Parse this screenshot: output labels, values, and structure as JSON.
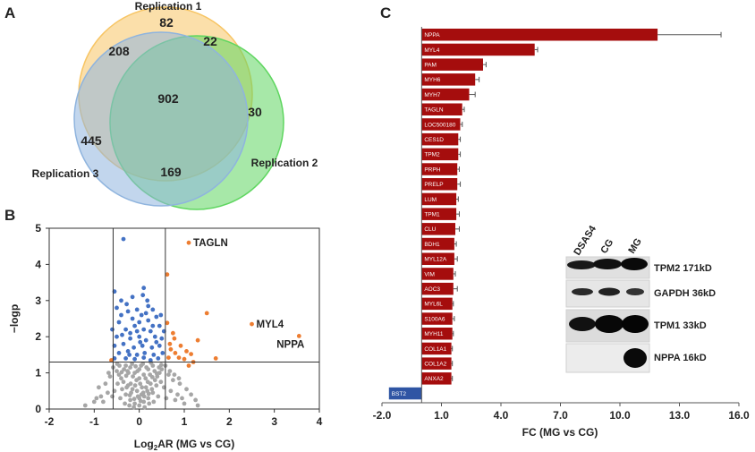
{
  "panels": {
    "a": "A",
    "b": "B",
    "c": "C"
  },
  "chart_data": [
    {
      "type": "venn",
      "sets": [
        "Replication 1",
        "Replication 2",
        "Replication 3"
      ],
      "regions": {
        "r1_only": "82",
        "r1_r2": "22",
        "r2_only": "30",
        "r1_r3": "208",
        "all": "902",
        "r3_only": "445",
        "r2_r3": "169"
      },
      "colors": {
        "r1": "#f7c564",
        "r2": "#5fd660",
        "r3": "#8fb4de"
      }
    },
    {
      "type": "scatter",
      "xlabel": "Log2AR (MG vs CG)",
      "ylabel": "−logp",
      "xlim": [
        -2,
        4
      ],
      "ylim": [
        0,
        5
      ],
      "xticks": [
        "-2",
        "-1",
        "0",
        "1",
        "2",
        "3",
        "4"
      ],
      "yticks": [
        "0",
        "1",
        "2",
        "3",
        "4",
        "5"
      ],
      "thresholds": {
        "x": [
          -0.58,
          0.58
        ],
        "y": 1.3
      },
      "colors": {
        "grey": "#a6a6a6",
        "blue": "#4472c4",
        "orange": "#ed7d31"
      },
      "labeled_points": [
        {
          "label": "TAGLN",
          "x": 1.1,
          "y": 4.6
        },
        {
          "label": "MYL4",
          "x": 2.5,
          "y": 2.35
        },
        {
          "label": "NPPA",
          "x": 3.55,
          "y": 2.02
        }
      ],
      "orange_points": [
        [
          1.1,
          4.6
        ],
        [
          2.5,
          2.35
        ],
        [
          3.55,
          2.02
        ],
        [
          1.5,
          2.65
        ],
        [
          0.62,
          2.38
        ],
        [
          0.75,
          2.1
        ],
        [
          0.92,
          1.75
        ],
        [
          1.05,
          1.6
        ],
        [
          0.8,
          1.55
        ],
        [
          0.65,
          1.42
        ],
        [
          1.0,
          1.38
        ],
        [
          1.2,
          1.3
        ],
        [
          0.7,
          1.65
        ],
        [
          1.3,
          1.9
        ],
        [
          1.7,
          1.4
        ],
        [
          1.1,
          1.2
        ],
        [
          -0.62,
          1.35
        ],
        [
          0.78,
          1.95
        ],
        [
          0.62,
          3.72
        ],
        [
          0.88,
          1.42
        ],
        [
          1.15,
          1.52
        ],
        [
          0.68,
          1.8
        ]
      ],
      "blue_points": [
        [
          -0.35,
          4.7
        ],
        [
          -0.55,
          3.25
        ],
        [
          -0.4,
          3.0
        ],
        [
          -0.05,
          2.75
        ],
        [
          0.3,
          2.75
        ],
        [
          0.18,
          3.0
        ],
        [
          0.08,
          3.15
        ],
        [
          -0.25,
          2.7
        ],
        [
          -0.15,
          2.5
        ],
        [
          0.05,
          2.6
        ],
        [
          0.2,
          2.45
        ],
        [
          0.38,
          2.55
        ],
        [
          -0.45,
          2.4
        ],
        [
          -0.6,
          2.2
        ],
        [
          -0.3,
          2.2
        ],
        [
          -0.1,
          2.3
        ],
        [
          0.1,
          2.2
        ],
        [
          0.25,
          2.15
        ],
        [
          0.45,
          2.3
        ],
        [
          -0.5,
          2.0
        ],
        [
          -0.2,
          1.95
        ],
        [
          0.0,
          2.0
        ],
        [
          0.15,
          1.9
        ],
        [
          0.35,
          2.0
        ],
        [
          0.5,
          1.95
        ],
        [
          -0.55,
          1.75
        ],
        [
          -0.35,
          1.8
        ],
        [
          -0.12,
          1.7
        ],
        [
          0.07,
          1.75
        ],
        [
          0.28,
          1.7
        ],
        [
          0.45,
          1.75
        ],
        [
          -0.45,
          1.55
        ],
        [
          -0.25,
          1.6
        ],
        [
          -0.05,
          1.5
        ],
        [
          0.12,
          1.55
        ],
        [
          0.32,
          1.5
        ],
        [
          0.52,
          1.55
        ],
        [
          -0.55,
          1.4
        ],
        [
          -0.3,
          1.4
        ],
        [
          -0.1,
          1.38
        ],
        [
          0.1,
          1.42
        ],
        [
          0.25,
          1.35
        ],
        [
          0.42,
          1.4
        ],
        [
          -0.2,
          2.1
        ],
        [
          0.3,
          2.3
        ],
        [
          -0.4,
          2.6
        ],
        [
          0.0,
          2.4
        ],
        [
          0.2,
          2.85
        ],
        [
          -0.28,
          2.9
        ],
        [
          0.48,
          2.6
        ],
        [
          -0.15,
          3.1
        ],
        [
          0.1,
          3.35
        ],
        [
          -0.5,
          2.8
        ],
        [
          0.55,
          2.15
        ],
        [
          -0.05,
          2.15
        ],
        [
          0.38,
          1.85
        ],
        [
          -0.38,
          2.05
        ],
        [
          0.15,
          2.65
        ],
        [
          -0.22,
          1.5
        ],
        [
          0.02,
          1.85
        ]
      ],
      "grey_points": [
        [
          0.0,
          0.1
        ],
        [
          0.1,
          0.2
        ],
        [
          -0.1,
          0.15
        ],
        [
          0.2,
          0.3
        ],
        [
          -0.2,
          0.25
        ],
        [
          0.05,
          0.4
        ],
        [
          -0.05,
          0.5
        ],
        [
          0.15,
          0.6
        ],
        [
          -0.15,
          0.55
        ],
        [
          0.25,
          0.7
        ],
        [
          -0.25,
          0.65
        ],
        [
          0.3,
          0.45
        ],
        [
          -0.3,
          0.4
        ],
        [
          0.35,
          0.8
        ],
        [
          -0.35,
          0.75
        ],
        [
          0.4,
          0.9
        ],
        [
          -0.4,
          0.85
        ],
        [
          0.45,
          1.0
        ],
        [
          -0.45,
          0.95
        ],
        [
          0.5,
          1.1
        ],
        [
          -0.5,
          1.05
        ],
        [
          0.0,
          0.85
        ],
        [
          0.1,
          0.95
        ],
        [
          -0.1,
          1.0
        ],
        [
          0.2,
          1.1
        ],
        [
          -0.2,
          1.15
        ],
        [
          0.3,
          1.2
        ],
        [
          -0.3,
          1.2
        ],
        [
          0.08,
          1.25
        ],
        [
          -0.08,
          1.18
        ],
        [
          0.55,
          0.6
        ],
        [
          -0.55,
          0.5
        ],
        [
          0.6,
          0.3
        ],
        [
          -0.6,
          0.35
        ],
        [
          0.7,
          0.5
        ],
        [
          -0.7,
          0.45
        ],
        [
          0.8,
          0.25
        ],
        [
          -0.8,
          0.2
        ],
        [
          1.0,
          0.15
        ],
        [
          -1.0,
          0.2
        ],
        [
          1.15,
          0.4
        ],
        [
          1.3,
          0.1
        ],
        [
          -1.2,
          0.1
        ],
        [
          0.9,
          0.7
        ],
        [
          -0.9,
          0.6
        ],
        [
          0.65,
          0.95
        ],
        [
          -0.65,
          0.9
        ],
        [
          0.75,
          0.8
        ],
        [
          0.0,
          0.3
        ],
        [
          0.12,
          0.05
        ],
        [
          -0.12,
          0.05
        ],
        [
          0.22,
          0.15
        ],
        [
          -0.22,
          0.1
        ],
        [
          0.32,
          0.2
        ],
        [
          -0.32,
          0.15
        ],
        [
          0.42,
          0.35
        ],
        [
          -0.42,
          0.3
        ],
        [
          0.18,
          0.5
        ],
        [
          -0.18,
          0.45
        ],
        [
          0.28,
          0.55
        ],
        [
          -0.28,
          0.6
        ],
        [
          0.38,
          0.65
        ],
        [
          -0.38,
          0.55
        ],
        [
          0.48,
          0.75
        ],
        [
          -0.48,
          0.7
        ],
        [
          0.02,
          0.7
        ],
        [
          0.06,
          0.6
        ],
        [
          -0.06,
          0.8
        ],
        [
          0.14,
          0.85
        ],
        [
          -0.14,
          0.9
        ],
        [
          0.24,
          0.95
        ],
        [
          -0.24,
          1.0
        ],
        [
          0.34,
          1.05
        ],
        [
          -0.34,
          1.1
        ],
        [
          0.44,
          1.15
        ],
        [
          -0.44,
          1.2
        ],
        [
          0.16,
          1.15
        ],
        [
          -0.16,
          1.25
        ],
        [
          0.26,
          1.28
        ],
        [
          -0.26,
          1.05
        ],
        [
          1.05,
          0.55
        ],
        [
          0.85,
          0.4
        ],
        [
          -0.85,
          0.35
        ],
        [
          -0.95,
          0.3
        ],
        [
          0.95,
          0.3
        ],
        [
          1.25,
          0.25
        ],
        [
          0.58,
          1.2
        ],
        [
          -0.58,
          1.15
        ],
        [
          0.68,
          1.05
        ],
        [
          -0.68,
          1.0
        ],
        [
          0.78,
          0.95
        ],
        [
          -0.75,
          0.7
        ],
        [
          0.88,
          0.85
        ],
        [
          0.03,
          0.22
        ],
        [
          -0.03,
          0.35
        ],
        [
          0.09,
          0.45
        ],
        [
          -0.09,
          0.65
        ],
        [
          0.19,
          0.75
        ],
        [
          -0.19,
          0.7
        ],
        [
          0.29,
          0.88
        ],
        [
          -0.29,
          0.92
        ],
        [
          0.39,
          0.98
        ],
        [
          -0.39,
          1.02
        ],
        [
          0.49,
          1.22
        ],
        [
          -0.49,
          1.25
        ],
        [
          0.0,
          1.1
        ],
        [
          0.04,
          1.2
        ],
        [
          -0.04,
          1.05
        ],
        [
          0.11,
          0.35
        ],
        [
          -0.11,
          0.28
        ],
        [
          0.21,
          0.42
        ],
        [
          -0.21,
          0.38
        ]
      ]
    },
    {
      "type": "bar",
      "orientation": "horizontal",
      "xlabel": "FC (MG vs CG)",
      "xlim": [
        -2,
        16
      ],
      "xticks": [
        "-2.0",
        "1.0",
        "4.0",
        "7.0",
        "10.0",
        "13.0",
        "16.0"
      ],
      "colors": {
        "up": "#a50d0d",
        "down": "#2f55a4"
      },
      "categories": [
        "NPPA",
        "MYL4",
        "PAM",
        "MYH6",
        "MYH7",
        "TAGLN",
        "LOC500180",
        "CES1D",
        "TPM2",
        "PRPH",
        "PRELP",
        "LUM",
        "TPM1",
        "CLU",
        "BDH1",
        "MYL12A",
        "VIM",
        "AOC3",
        "MYL6L",
        "S100A6",
        "MYH11",
        "COL1A1",
        "COL1A2",
        "ANXA2",
        "BST2"
      ],
      "values": [
        11.9,
        5.7,
        3.1,
        2.7,
        2.4,
        2.05,
        1.95,
        1.85,
        1.85,
        1.8,
        1.8,
        1.75,
        1.75,
        1.7,
        1.65,
        1.65,
        1.6,
        1.6,
        1.55,
        1.55,
        1.55,
        1.5,
        1.5,
        1.5,
        -1.65
      ],
      "errors": [
        3.2,
        0.15,
        0.15,
        0.2,
        0.3,
        0.1,
        0.1,
        0.1,
        0.1,
        0.1,
        0.15,
        0.1,
        0.15,
        0.2,
        0.1,
        0.15,
        0.1,
        0.2,
        0.05,
        0.1,
        0.05,
        0.05,
        0.05,
        0.05,
        0.0
      ]
    }
  ],
  "blot": {
    "columns": [
      "DSAS4",
      "CG",
      "MG"
    ],
    "rows": [
      {
        "label": "TPM2 171kD"
      },
      {
        "label": "GAPDH 36kD"
      },
      {
        "label": "TPM1  33kD"
      },
      {
        "label": "NPPA 16kD"
      }
    ]
  }
}
